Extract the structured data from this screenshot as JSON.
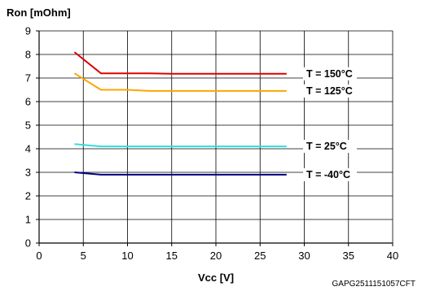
{
  "chart_data": {
    "type": "line",
    "title": "",
    "ylabel": "Ron [mOhm]",
    "xlabel": "Vcc [V]",
    "xlim": [
      0,
      40
    ],
    "ylim": [
      0,
      9
    ],
    "xticks": [
      0,
      5,
      10,
      15,
      20,
      25,
      30,
      35,
      40
    ],
    "yticks": [
      0,
      1,
      2,
      3,
      4,
      5,
      6,
      7,
      8,
      9
    ],
    "grid": true,
    "series": [
      {
        "name": "T = 150°C",
        "color": "#dd0000",
        "x": [
          4,
          7,
          10,
          12.5,
          15,
          20,
          25,
          28
        ],
        "y": [
          8.1,
          7.2,
          7.2,
          7.2,
          7.18,
          7.18,
          7.18,
          7.18
        ]
      },
      {
        "name": "T = 125°C",
        "color": "#ffa500",
        "x": [
          4,
          7,
          10,
          12.5,
          15,
          20,
          25,
          28
        ],
        "y": [
          7.2,
          6.5,
          6.5,
          6.45,
          6.45,
          6.45,
          6.45,
          6.45
        ]
      },
      {
        "name": "T = 25°C",
        "color": "#33dddd",
        "x": [
          4,
          7,
          10,
          12.5,
          15,
          20,
          25,
          28
        ],
        "y": [
          4.2,
          4.1,
          4.1,
          4.1,
          4.1,
          4.1,
          4.1,
          4.1
        ]
      },
      {
        "name": "T = -40°C",
        "color": "#000080",
        "x": [
          4,
          7,
          10,
          12.5,
          15,
          20,
          25,
          28
        ],
        "y": [
          3.0,
          2.9,
          2.9,
          2.9,
          2.9,
          2.9,
          2.9,
          2.9
        ]
      }
    ]
  },
  "figure_code": "GAPG2511151057CFT"
}
